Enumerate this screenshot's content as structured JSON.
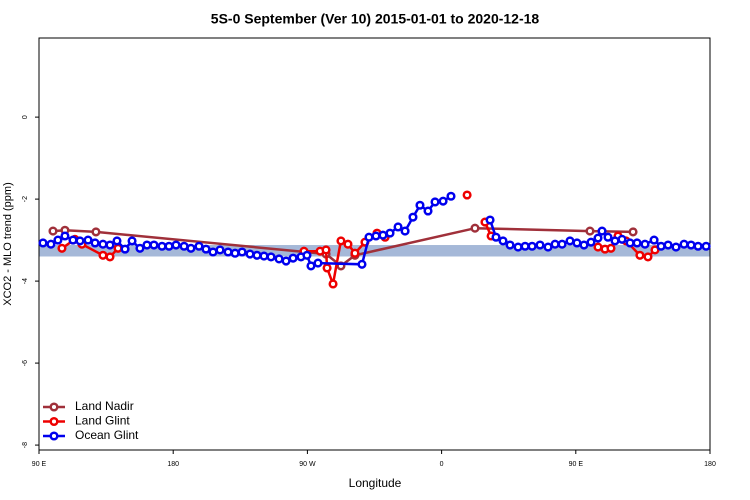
{
  "chart_data": {
    "type": "line",
    "title": "5S-0 September (Ver 10)   2015-01-01 to 2020-12-18",
    "x_label": "Longitude",
    "y_label": "XCO2 - MLO trend (ppm)",
    "xlim": [
      90,
      540
    ],
    "xticks": [
      {
        "value": 90,
        "label": "90 E"
      },
      180,
      {
        "value": 270,
        "label": "90 W"
      },
      {
        "value": 360,
        "label": "0"
      },
      {
        "value": 450,
        "label": "90 E"
      },
      {
        "value": 540,
        "label": "180"
      }
    ],
    "ylim": [
      -8.12,
      1.93
    ],
    "yticks": [
      0,
      -2,
      -4,
      -6,
      -8
    ],
    "legend": "bottom-left",
    "reference_band": {
      "ylim": [
        -3.4,
        -3.12
      ],
      "color": "#a5b8d8"
    },
    "series": [
      {
        "name": "Land Nadir",
        "color": "#a0303a",
        "x": [
          99.4,
          107.4,
          128.2,
          282.5,
          292.5,
          301.9,
          382.4,
          459.5,
          488.4
        ],
        "values": [
          -2.78,
          -2.76,
          -2.8,
          -3.34,
          -3.63,
          -3.37,
          -2.71,
          -2.78,
          -2.8
        ]
      },
      {
        "name": "Land Glint",
        "color": "#ee0000",
        "x": [
          105.4,
          114.1,
          118.8,
          132.9,
          137.6,
          143.0,
          200,
          267.7,
          278.5,
          282.5,
          283.2,
          287.2,
          292.5,
          297.2,
          301.9,
          308.6,
          316.7,
          322.1,
          350,
          377.1,
          385,
          389.1,
          393.2,
          430,
          464.9,
          469.6,
          473.6,
          478.3,
          483.7,
          493.0,
          498.4,
          503.1
        ],
        "values": [
          -3.2,
          -2.98,
          -3.1,
          -3.37,
          -3.41,
          -3.2,
          null,
          -3.27,
          -3.27,
          -3.24,
          -3.68,
          -4.07,
          -3.02,
          -3.1,
          -3.32,
          -3.05,
          -2.83,
          -2.93,
          null,
          -1.9,
          null,
          -2.56,
          -2.9,
          null,
          -3.17,
          -3.22,
          -3.2,
          -2.9,
          -3.02,
          -3.37,
          -3.41,
          -3.24
        ]
      },
      {
        "name": "Ocean Glint",
        "color": "#0000ee",
        "x": [
          92.7,
          98.0,
          102.7,
          107.4,
          112.8,
          117.5,
          122.9,
          127.6,
          132.9,
          137.6,
          142.3,
          147.7,
          152.4,
          157.7,
          162.4,
          167.1,
          172.5,
          177.2,
          181.9,
          187.3,
          191.9,
          197.3,
          202.0,
          206.7,
          211.4,
          216.8,
          221.5,
          226.2,
          231.5,
          236.2,
          240.9,
          245.6,
          251.0,
          255.7,
          260.4,
          265.7,
          269.7,
          272.4,
          277.1,
          306.6,
          311.3,
          316.0,
          320.7,
          325.4,
          330.8,
          335.5,
          340.8,
          345.5,
          350.9,
          355.6,
          361.0,
          366.3,
          380,
          392.5,
          396.5,
          401.2,
          405.9,
          411.3,
          416.0,
          420.7,
          426.0,
          431.4,
          436.1,
          440.8,
          446.1,
          450.8,
          455.5,
          460.2,
          464.9,
          467.6,
          471.6,
          476.3,
          481.0,
          486.4,
          491.1,
          496.4,
          502.5,
          507.2,
          511.9,
          517.2,
          522.6,
          527.3,
          532.0,
          537.4
        ],
        "values": [
          -3.07,
          -3.1,
          -3.0,
          -2.9,
          -3.0,
          -3.02,
          -3.0,
          -3.07,
          -3.1,
          -3.12,
          -3.02,
          -3.22,
          -3.02,
          -3.2,
          -3.12,
          -3.12,
          -3.15,
          -3.15,
          -3.12,
          -3.15,
          -3.2,
          -3.15,
          -3.22,
          -3.29,
          -3.24,
          -3.29,
          -3.32,
          -3.29,
          -3.34,
          -3.37,
          -3.39,
          -3.41,
          -3.46,
          -3.51,
          -3.44,
          -3.41,
          -3.37,
          -3.63,
          -3.56,
          -3.59,
          -2.93,
          -2.9,
          -2.88,
          -2.83,
          -2.68,
          -2.78,
          -2.44,
          -2.15,
          -2.29,
          -2.07,
          -2.05,
          -1.93,
          null,
          -2.51,
          -2.93,
          -3.02,
          -3.12,
          -3.17,
          -3.15,
          -3.15,
          -3.12,
          -3.17,
          -3.1,
          -3.1,
          -3.02,
          -3.07,
          -3.12,
          -3.05,
          -2.95,
          -2.78,
          -2.93,
          -3.02,
          -2.98,
          -3.07,
          -3.07,
          -3.1,
          -3.0,
          -3.15,
          -3.12,
          -3.17,
          -3.1,
          -3.12,
          -3.15,
          -3.15
        ]
      }
    ]
  }
}
